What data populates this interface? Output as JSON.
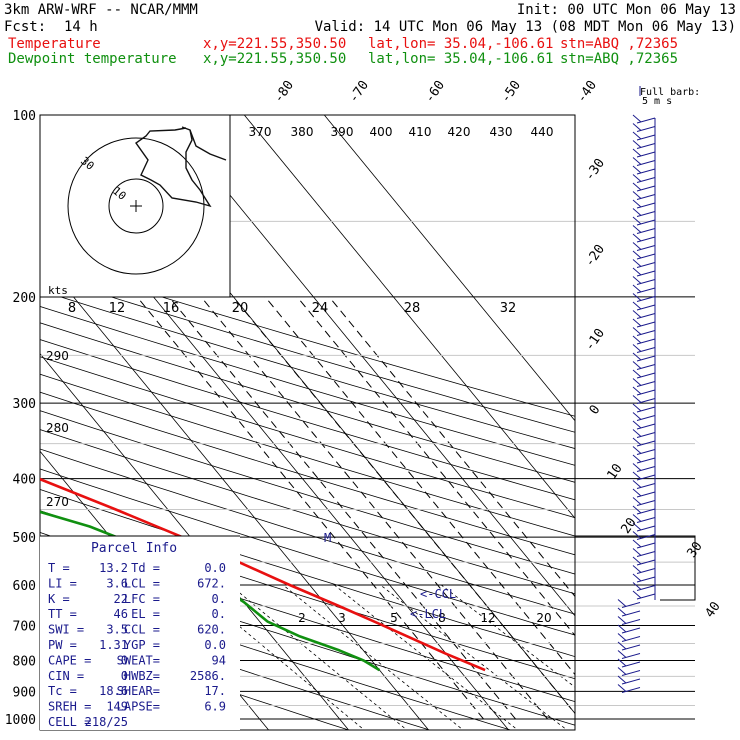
{
  "header": {
    "model": "3km ARW-WRF -- NCAR/MMM",
    "init": "Init: 00 UTC Mon 06 May 13",
    "fcst_label": "Fcst:",
    "fcst_value": "14 h",
    "valid": "Valid: 14 UTC Mon 06 May 13 (08 MDT Mon 06 May 13)"
  },
  "legend": [
    {
      "name": "Temperature",
      "xy": "x,y=221.55,350.50",
      "latlon": "lat,lon= 35.04,-106.61",
      "stn": "stn=ABQ ,72365",
      "color": "#e81010"
    },
    {
      "name": "Dewpoint temperature",
      "xy": "x,y=221.55,350.50",
      "latlon": "lat,lon= 35.04,-106.61",
      "stn": "stn=ABQ ,72365",
      "color": "#109010"
    }
  ],
  "barb_key": {
    "line1": "Full barb:",
    "line2": "5 m s"
  },
  "hodo": {
    "kts_label": "kts",
    "ring_labels": [
      "10",
      "30"
    ]
  },
  "parcel": {
    "title": "Parcel Info",
    "rows": [
      [
        "T  =",
        "13.2",
        "Td =",
        "0.0"
      ],
      [
        "LI =",
        "3.6",
        "LCL =",
        "672."
      ],
      [
        "K  =",
        "22",
        "LFC =",
        "0."
      ],
      [
        "TT =",
        "46",
        "EL  =",
        "0."
      ],
      [
        "SWI =",
        "3.5",
        "CCL =",
        "620."
      ],
      [
        "PW =",
        "1.31",
        "YGP =",
        "0.0"
      ],
      [
        "CAPE =",
        "0",
        "SWEAT=",
        "94"
      ],
      [
        "CIN =",
        "0",
        "HWBZ=",
        "2586."
      ],
      [
        "Tc =",
        "18.6",
        "SHEAR=",
        "17."
      ],
      [
        "SREH =",
        "149",
        "LAPSE=",
        "6.9"
      ],
      [
        "CELL =",
        "218/25",
        "",
        ""
      ]
    ]
  },
  "annotations": {
    "ccl": "<-CCL",
    "lcl": "<-LCL",
    "m": "M"
  },
  "colors": {
    "temp": "#e81010",
    "dew": "#109010",
    "label": "#1a1a8c",
    "hodo": "#111111"
  },
  "chart_data": {
    "type": "line",
    "title": "",
    "pressure_levels": [
      100,
      200,
      300,
      400,
      500,
      600,
      700,
      800,
      900,
      1000
    ],
    "ylim": [
      1000,
      100
    ],
    "xlim": [
      -40,
      50
    ],
    "isotherm_labels": [
      -80,
      -70,
      -60,
      -50,
      -40,
      -30,
      -20,
      -10,
      0,
      10,
      20,
      30,
      40
    ],
    "theta_labels": [
      370,
      380,
      390,
      400,
      410,
      420,
      430,
      440
    ],
    "theta_side_labels": [
      290,
      280,
      270
    ],
    "mixing_ratio_upper": [
      8,
      12,
      16,
      20,
      24,
      28,
      32
    ],
    "mixing_ratio_lower": [
      2,
      3,
      5,
      8,
      12,
      20
    ],
    "series": [
      {
        "name": "Temperature",
        "p": [
          830,
          780,
          700,
          650,
          600,
          550,
          500,
          450,
          400,
          350,
          300,
          270,
          250,
          220,
          200,
          180,
          160,
          140,
          125,
          110,
          100
        ],
        "t": [
          13.2,
          10.0,
          5.0,
          1.5,
          -2.5,
          -6.5,
          -11.0,
          -16.5,
          -23.0,
          -30.0,
          -37.5,
          -42.5,
          -46.5,
          -49.5,
          -52.0,
          -54.0,
          -55.0,
          -56.5,
          -58.5,
          -59.5,
          -60.0
        ]
      },
      {
        "name": "Dewpoint temperature",
        "p": [
          830,
          800,
          770,
          730,
          690,
          640,
          600,
          560,
          520,
          480,
          450,
          420,
          380,
          340,
          300,
          270,
          240,
          220,
          200,
          180,
          160,
          140,
          125,
          110,
          100
        ],
        "t": [
          0.0,
          -1.0,
          -3.0,
          -6.5,
          -9.0,
          -10.0,
          -11.5,
          -14.0,
          -17.0,
          -21.5,
          -27.0,
          -33.0,
          -38.0,
          -39.0,
          -43.0,
          -47.0,
          -53.0,
          -60.0,
          -65.0,
          -65.5,
          -66.5,
          -67.5,
          -68.0,
          -70.0,
          -72.0
        ]
      }
    ]
  }
}
